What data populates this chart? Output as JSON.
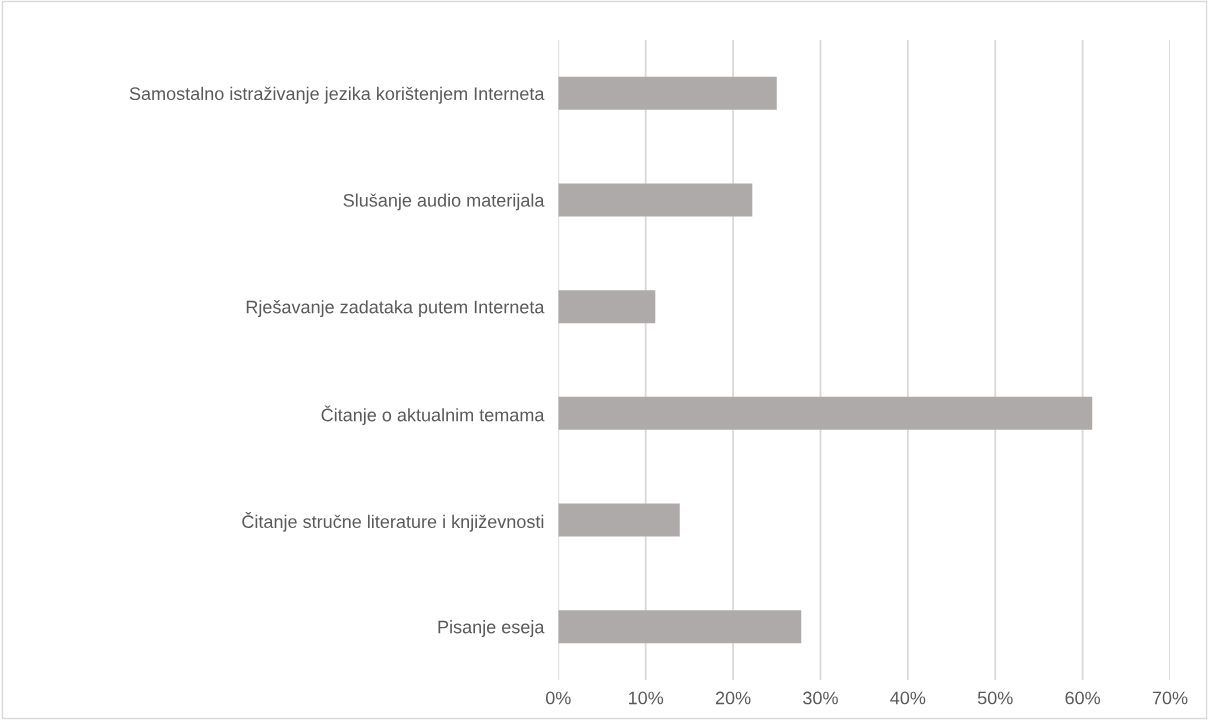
{
  "chart_data": {
    "type": "bar",
    "orientation": "horizontal",
    "categories": [
      "Samostalno istraživanje jezika korištenjem Interneta",
      "Slušanje audio materijala",
      "Rješavanje zadataka putem Interneta",
      "Čitanje o aktualnim temama",
      "Čitanje stručne literature i književnosti",
      "Pisanje eseja"
    ],
    "values": [
      25.0,
      22.2,
      11.1,
      61.1,
      13.9,
      27.8
    ],
    "color": "#aeaaaa",
    "xlim": [
      0,
      70
    ],
    "xticks": [
      {
        "value": 0,
        "label": "0%"
      },
      {
        "value": 10,
        "label": "10%"
      },
      {
        "value": 20,
        "label": "20%"
      },
      {
        "value": 30,
        "label": "30%"
      },
      {
        "value": 40,
        "label": "40%"
      },
      {
        "value": 50,
        "label": "50%"
      },
      {
        "value": 60,
        "label": "60%"
      },
      {
        "value": 70,
        "label": "70%"
      }
    ],
    "grid": "x",
    "legend": false
  }
}
